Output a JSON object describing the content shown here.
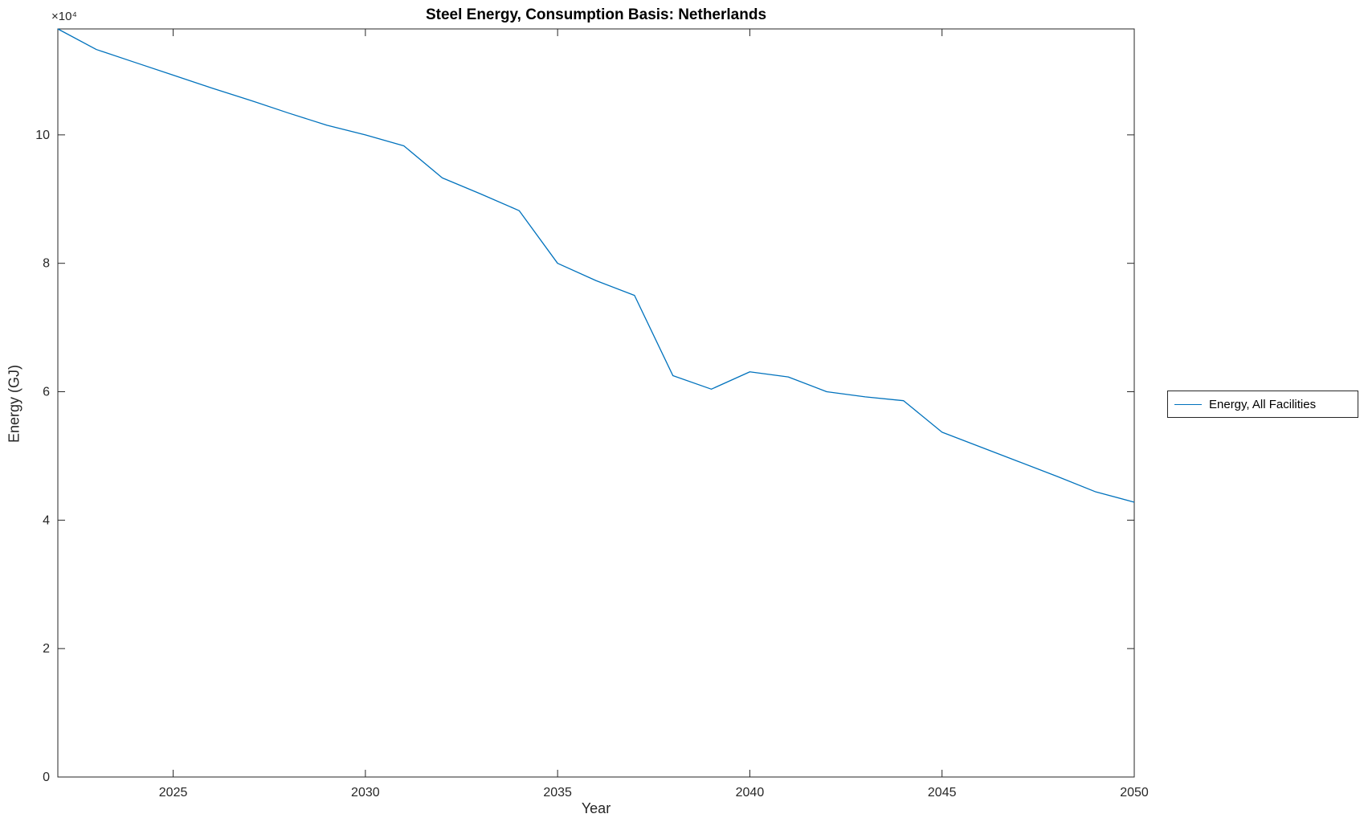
{
  "chart_data": {
    "type": "line",
    "title": "Steel Energy, Consumption Basis: Netherlands",
    "xlabel": "Year",
    "ylabel": "Energy (GJ)",
    "y_axis_multiplier": "×10⁴",
    "xlim": [
      2022,
      2050
    ],
    "ylim": [
      0,
      116500
    ],
    "x_ticks": [
      2025,
      2030,
      2035,
      2040,
      2045,
      2050
    ],
    "x_tick_labels": [
      "2025",
      "2030",
      "2035",
      "2040",
      "2045",
      "2050"
    ],
    "y_ticks": [
      0,
      20000,
      40000,
      60000,
      80000,
      100000
    ],
    "y_tick_labels": [
      "0",
      "2",
      "4",
      "6",
      "8",
      "10"
    ],
    "grid": false,
    "legend": {
      "position": "right-outside",
      "entries": [
        "Energy, All Facilities"
      ]
    },
    "axis_color": "#262626",
    "series": [
      {
        "name": "Energy, All Facilities",
        "color": "#0072BD",
        "x": [
          2022,
          2023,
          2024,
          2025,
          2026,
          2027,
          2028,
          2029,
          2030,
          2031,
          2032,
          2033,
          2034,
          2035,
          2036,
          2037,
          2038,
          2039,
          2040,
          2041,
          2042,
          2043,
          2044,
          2045,
          2046,
          2047,
          2048,
          2049,
          2050
        ],
        "values": [
          116500,
          113300,
          111300,
          109300,
          107300,
          105400,
          103400,
          101500,
          100000,
          98300,
          93300,
          90800,
          88200,
          80000,
          77300,
          75000,
          62500,
          60400,
          63100,
          62300,
          60000,
          59200,
          58600,
          53700,
          51400,
          49100,
          46800,
          44400,
          42800
        ]
      }
    ]
  }
}
